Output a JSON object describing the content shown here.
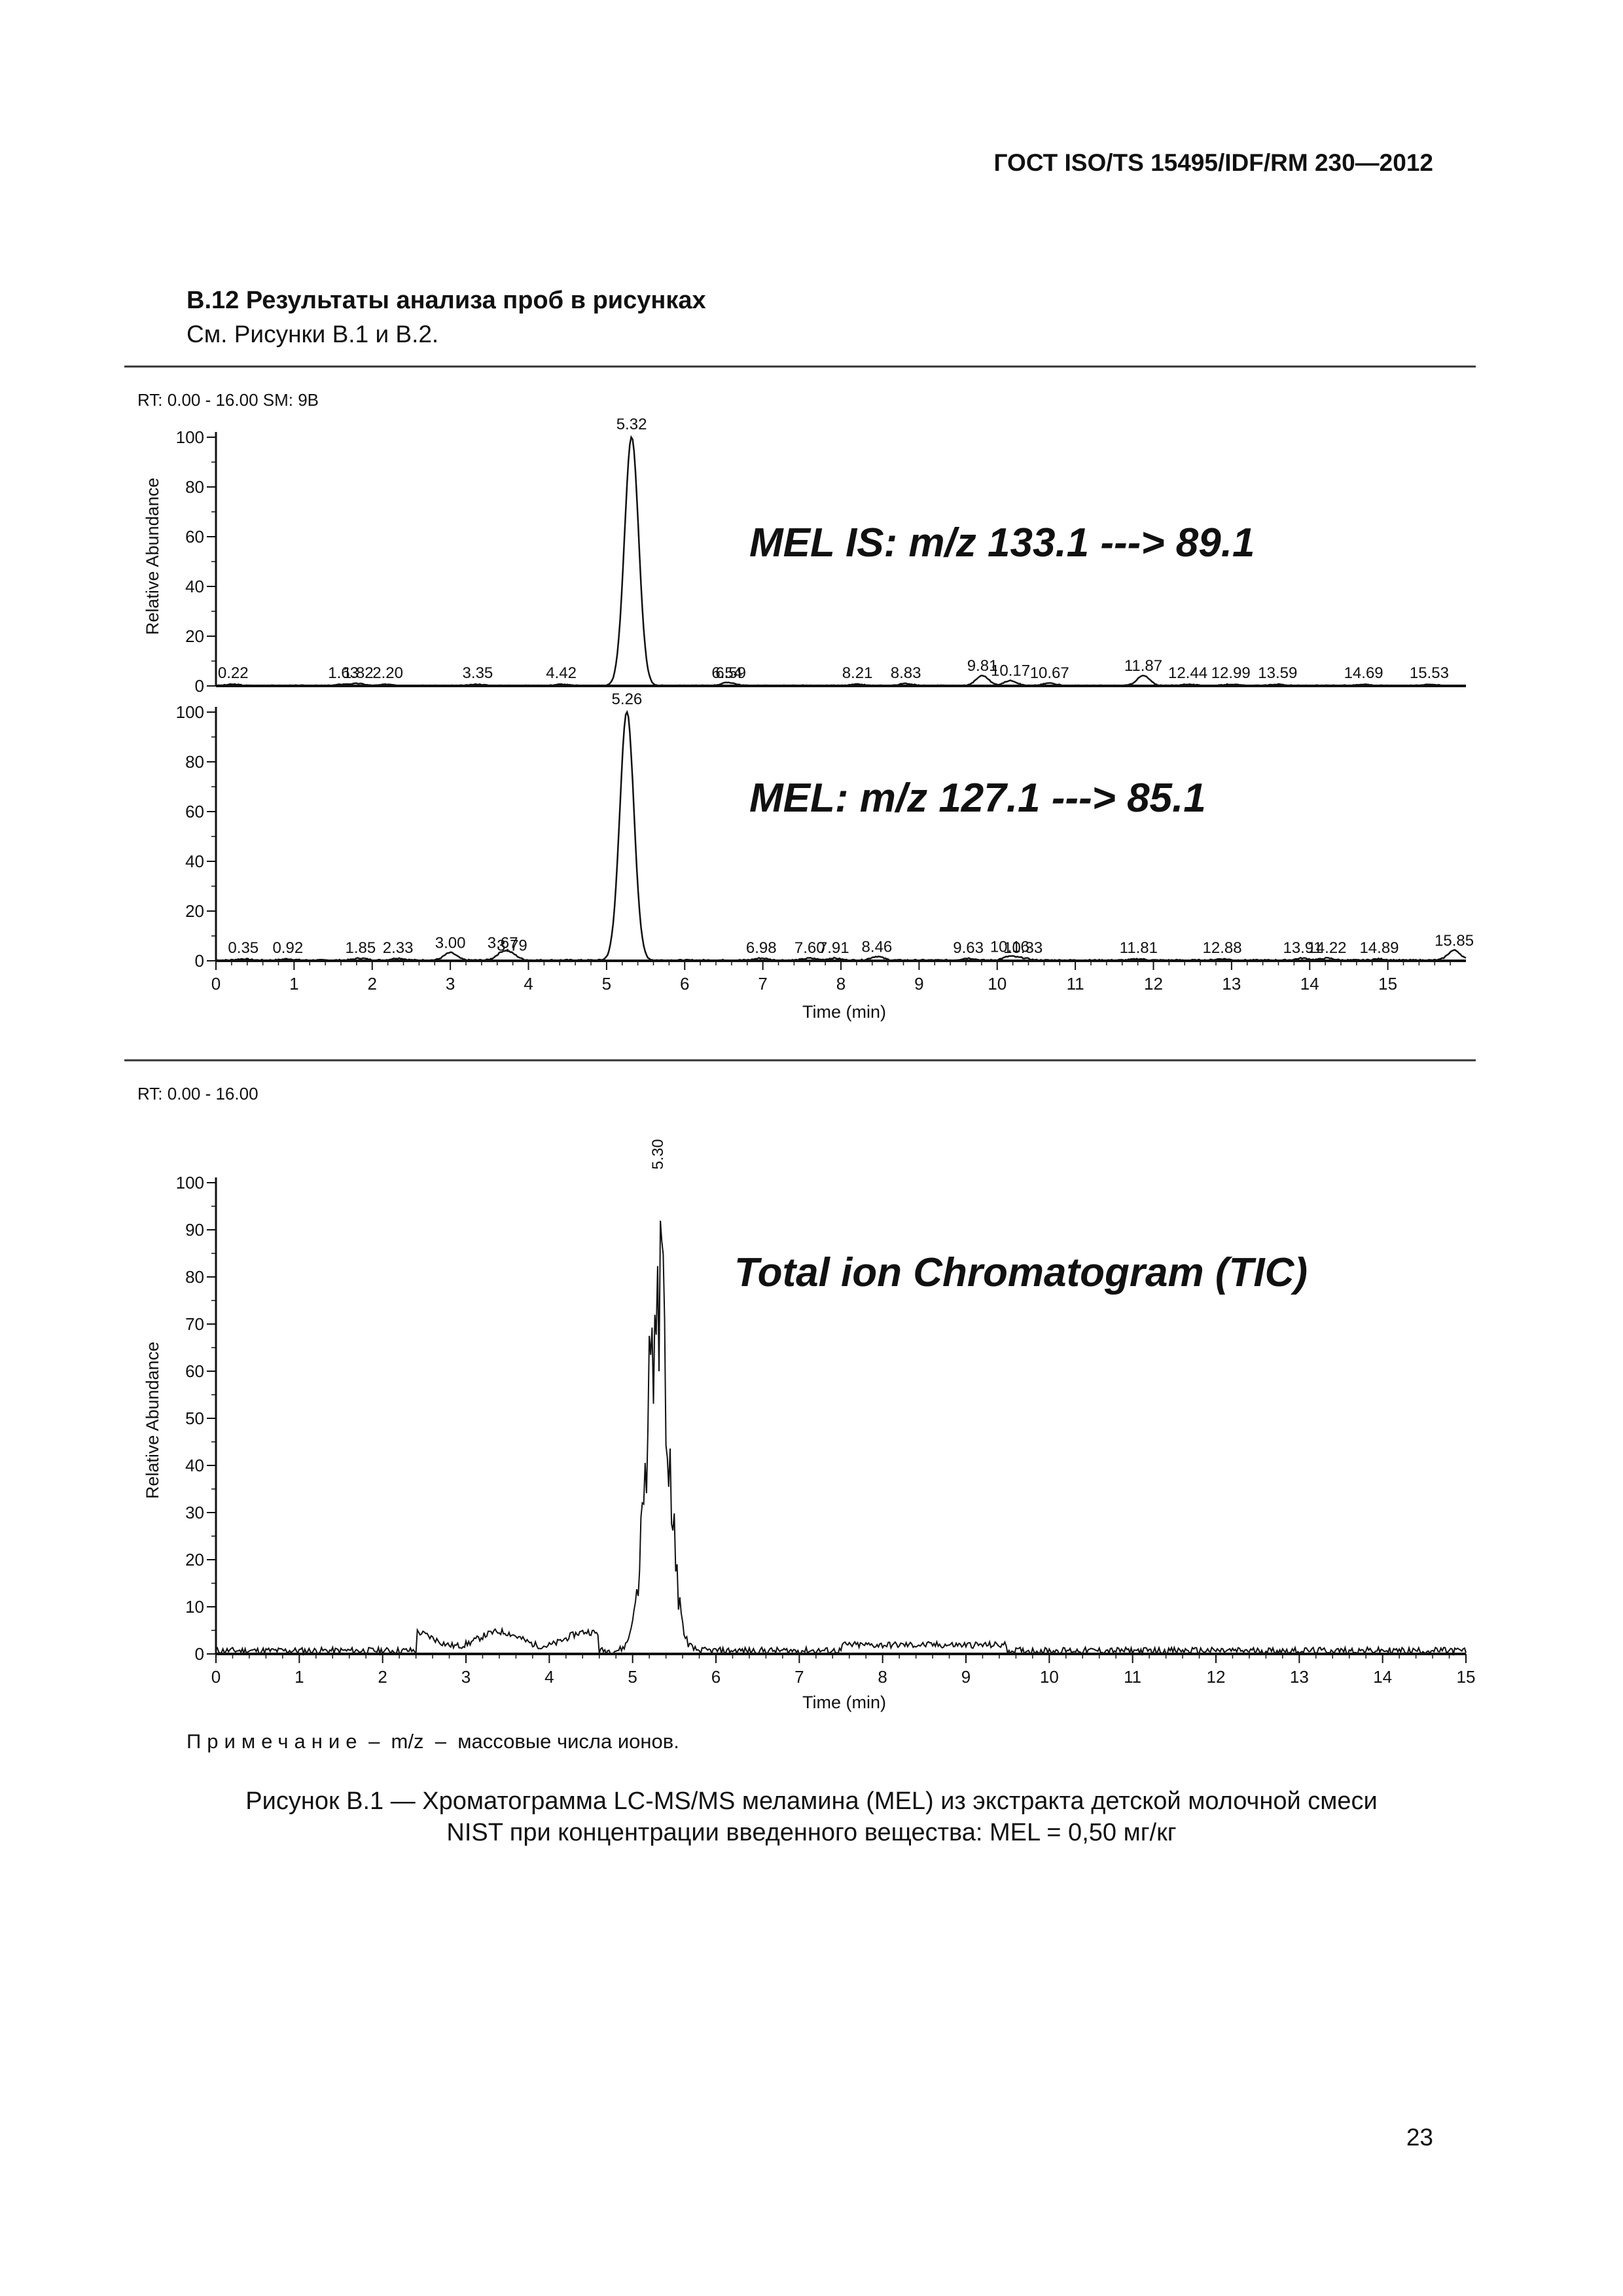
{
  "header": {
    "standard": "ГОСТ ISO/TS 15495/IDF/RM 230—2012"
  },
  "section": {
    "title": "B.12 Результаты анализа проб в рисунках",
    "ref": "См. Рисунки B.1 и B.2."
  },
  "figure1": {
    "info": "RT: 0.00 - 16.00   SM: 9B",
    "xlabel": "Time (min)",
    "ylabel": "Relative Abundance"
  },
  "figure2": {
    "info": "RT: 0.00 - 16.00",
    "xlabel": "Time (min)",
    "ylabel": "Relative Abundance"
  },
  "note": {
    "label": "Примечание",
    "dash1": "–",
    "term": "m/z",
    "dash2": "–",
    "text": "массовые числа ионов."
  },
  "caption": {
    "line1": "Рисунок B.1 — Хроматограмма LC-MS/MS меламина (MEL) из экстракта детской молочной смеси",
    "line2": "NIST при концентрации введенного вещества: MEL = 0,50 мг/кг"
  },
  "page_number": "23",
  "chart_data": [
    {
      "type": "line",
      "title": "MEL IS: m/z 133.1 ---> 89.1",
      "xlabel": "",
      "ylabel": "Relative Abundance",
      "xlim": [
        0,
        16
      ],
      "ylim": [
        0,
        100
      ],
      "yticks": [
        0,
        20,
        40,
        60,
        80,
        100
      ],
      "peaks": [
        {
          "x": 0.22,
          "label": "0.22",
          "h": 0.5
        },
        {
          "x": 1.63,
          "label": "1.63",
          "h": 0.5
        },
        {
          "x": 1.82,
          "label": "1.82",
          "h": 0.8
        },
        {
          "x": 2.2,
          "label": "2.20",
          "h": 0.5
        },
        {
          "x": 3.35,
          "label": "3.35",
          "h": 0.5
        },
        {
          "x": 4.42,
          "label": "4.42",
          "h": 0.5
        },
        {
          "x": 5.32,
          "label": "5.32",
          "h": 100
        },
        {
          "x": 6.54,
          "label": "6.54",
          "h": 0.8
        },
        {
          "x": 6.59,
          "label": "6.59",
          "h": 0.5
        },
        {
          "x": 8.21,
          "label": "8.21",
          "h": 0.5
        },
        {
          "x": 8.83,
          "label": "8.83",
          "h": 0.8
        },
        {
          "x": 9.81,
          "label": "9.81",
          "h": 4
        },
        {
          "x": 10.17,
          "label": "10.17",
          "h": 2
        },
        {
          "x": 10.67,
          "label": "10.67",
          "h": 1
        },
        {
          "x": 11.87,
          "label": "11.87",
          "h": 4
        },
        {
          "x": 12.44,
          "label": "12.44",
          "h": 0.5
        },
        {
          "x": 12.99,
          "label": "12.99",
          "h": 0.5
        },
        {
          "x": 13.59,
          "label": "13.59",
          "h": 0.5
        },
        {
          "x": 14.69,
          "label": "14.69",
          "h": 0.5
        },
        {
          "x": 15.53,
          "label": "15.53",
          "h": 0.5
        }
      ]
    },
    {
      "type": "line",
      "title": "MEL: m/z 127.1 ---> 85.1",
      "xlabel": "Time (min)",
      "ylabel": "",
      "xlim": [
        0,
        16
      ],
      "ylim": [
        0,
        100
      ],
      "xticks": [
        0,
        1,
        2,
        3,
        4,
        5,
        6,
        7,
        8,
        9,
        10,
        11,
        12,
        13,
        14,
        15
      ],
      "yticks": [
        0,
        20,
        40,
        60,
        80,
        100
      ],
      "peaks": [
        {
          "x": 0.35,
          "label": "0.35",
          "h": 0.5
        },
        {
          "x": 0.92,
          "label": "0.92",
          "h": 0.5
        },
        {
          "x": 1.85,
          "label": "1.85",
          "h": 0.8
        },
        {
          "x": 2.33,
          "label": "2.33",
          "h": 0.8
        },
        {
          "x": 3.0,
          "label": "3.00",
          "h": 3
        },
        {
          "x": 3.67,
          "label": "3.67",
          "h": 3
        },
        {
          "x": 3.79,
          "label": "3.79",
          "h": 2
        },
        {
          "x": 5.26,
          "label": "5.26",
          "h": 100
        },
        {
          "x": 6.98,
          "label": "6.98",
          "h": 0.8
        },
        {
          "x": 7.6,
          "label": "7.60",
          "h": 0.8
        },
        {
          "x": 7.91,
          "label": "7.91",
          "h": 0.8
        },
        {
          "x": 8.46,
          "label": "8.46",
          "h": 1.5
        },
        {
          "x": 9.63,
          "label": "9.63",
          "h": 0.8
        },
        {
          "x": 10.16,
          "label": "10.16",
          "h": 1.5
        },
        {
          "x": 10.33,
          "label": "10.33",
          "h": 0.8
        },
        {
          "x": 11.81,
          "label": "11.81",
          "h": 0.5
        },
        {
          "x": 12.88,
          "label": "12.88",
          "h": 0.5
        },
        {
          "x": 13.91,
          "label": "13.91",
          "h": 0.8
        },
        {
          "x": 14.22,
          "label": "14.22",
          "h": 0.8
        },
        {
          "x": 14.89,
          "label": "14.89",
          "h": 0.5
        },
        {
          "x": 15.85,
          "label": "15.85",
          "h": 4
        }
      ]
    },
    {
      "type": "line",
      "title": "Total ion Chromatogram (TIC)",
      "xlabel": "Time (min)",
      "ylabel": "Relative Abundance",
      "xlim": [
        0,
        15
      ],
      "ylim": [
        0,
        100
      ],
      "xticks": [
        0,
        1,
        2,
        3,
        4,
        5,
        6,
        7,
        8,
        9,
        10,
        11,
        12,
        13,
        14,
        15
      ],
      "yticks": [
        0,
        10,
        20,
        30,
        40,
        50,
        60,
        70,
        80,
        90,
        100
      ],
      "peaks": [
        {
          "x": 5.3,
          "label": "5.30",
          "h": 100
        }
      ]
    }
  ]
}
